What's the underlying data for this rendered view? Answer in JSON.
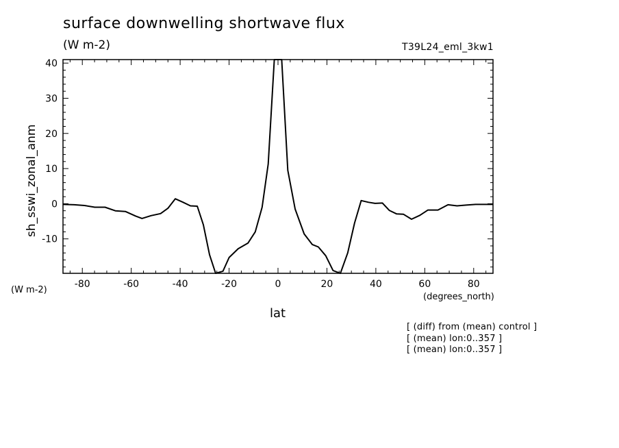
{
  "chart_data": {
    "type": "line",
    "title": "surface downwelling shortwave flux",
    "units": "(W m-2)",
    "run_id": "T39L24_eml_3kw1",
    "ylabel": "sh_sswi_zonal_anm",
    "yunits": "(W m-2)",
    "xlabel": "lat",
    "xunits": "(degrees_north)",
    "xlim": [
      -87.9,
      87.9
    ],
    "ylim": [
      -19.8,
      41
    ],
    "xticks": [
      -80,
      -60,
      -40,
      -20,
      0,
      20,
      40,
      60,
      80
    ],
    "yticks": [
      -10,
      0,
      10,
      20,
      30,
      40
    ],
    "xtick_labels": [
      "-80",
      "-60",
      "-40",
      "-20",
      "0",
      "20",
      "40",
      "60",
      "80"
    ],
    "ytick_labels": [
      "-10",
      "0",
      "10",
      "20",
      "30",
      "40"
    ],
    "grid": false,
    "series": [
      {
        "x": [
          -87.9,
          -83.3,
          -79.1,
          -74.9,
          -70.7,
          -66.5,
          -62.4,
          -58.2,
          -55.6,
          -51.9,
          -48.0,
          -45.0,
          -42.0,
          -38.8,
          -35.8,
          -33.0,
          -30.5,
          -28.0,
          -25.5,
          -22.5,
          -20.0,
          -16.3,
          -12.3,
          -9.3,
          -6.5,
          -4.0,
          -1.5,
          1.5,
          4.0,
          7.0,
          10.7,
          14.0,
          16.5,
          19.5,
          22.5,
          25.5,
          28.5,
          31.3,
          34.0,
          37.0,
          39.7,
          42.7,
          45.5,
          48.5,
          51.3,
          54.6,
          58.0,
          61.3,
          65.4,
          69.5,
          73.2,
          76.9,
          80.8,
          84.5,
          87.9
        ],
        "y": [
          -0.2,
          -0.3,
          -0.5,
          -1.0,
          -1.0,
          -2.0,
          -2.2,
          -3.5,
          -4.2,
          -3.4,
          -2.8,
          -1.3,
          1.4,
          0.4,
          -0.6,
          -0.7,
          -6.0,
          -14.5,
          -19.8,
          -19.2,
          -15.3,
          -12.8,
          -11.2,
          -8.0,
          -1.0,
          11.3,
          41.0,
          41.0,
          9.5,
          -1.5,
          -8.6,
          -11.6,
          -12.3,
          -14.8,
          -19.0,
          -19.8,
          -14.0,
          -5.5,
          0.9,
          0.4,
          0.1,
          0.2,
          -1.9,
          -2.9,
          -3.0,
          -4.4,
          -3.3,
          -1.8,
          -1.8,
          -0.3,
          -0.6,
          -0.4,
          -0.2,
          -0.2,
          -0.2
        ]
      }
    ]
  },
  "notes": [
    "[ (diff) from (mean) control ]",
    "[ (mean) lon:0..357 ]",
    "[ (mean) lon:0..357 ]"
  ]
}
